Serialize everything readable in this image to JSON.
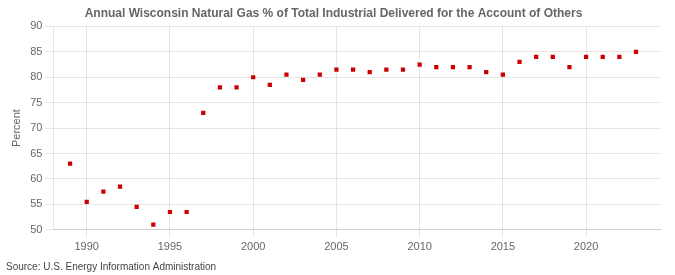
{
  "chart_data": {
    "type": "scatter",
    "title": "Annual Wisconsin Natural Gas % of Total Industrial Delivered for the Account of Others",
    "ylabel": "Percent",
    "annotations": [
      "Source: U.S. Energy Information Administration"
    ],
    "x": [
      1989,
      1990,
      1991,
      1992,
      1993,
      1994,
      1995,
      1996,
      1997,
      1998,
      1999,
      2000,
      2001,
      2002,
      2003,
      2004,
      2005,
      2006,
      2007,
      2008,
      2009,
      2010,
      2011,
      2012,
      2013,
      2014,
      2015,
      2016,
      2017,
      2018,
      2019,
      2020,
      2021,
      2022,
      2023
    ],
    "values": [
      63.0,
      55.5,
      57.5,
      58.5,
      54.5,
      51.0,
      53.5,
      53.5,
      73.0,
      78.0,
      78.0,
      80.0,
      78.5,
      80.5,
      79.5,
      80.5,
      81.5,
      81.5,
      81.0,
      81.5,
      81.5,
      82.5,
      82.0,
      82.0,
      82.0,
      81.0,
      80.5,
      83.0,
      84.0,
      84.0,
      82.0,
      84.0,
      84.0,
      84.0,
      85.0
    ],
    "color": "#cc0000",
    "marker": "square",
    "xlim": [
      1988,
      2024.5
    ],
    "ylim": [
      50,
      90
    ],
    "xticks": [
      1990,
      1995,
      2000,
      2005,
      2010,
      2015,
      2020
    ],
    "yticks": [
      50,
      55,
      60,
      65,
      70,
      75,
      80,
      85,
      90
    ],
    "grid": true
  }
}
